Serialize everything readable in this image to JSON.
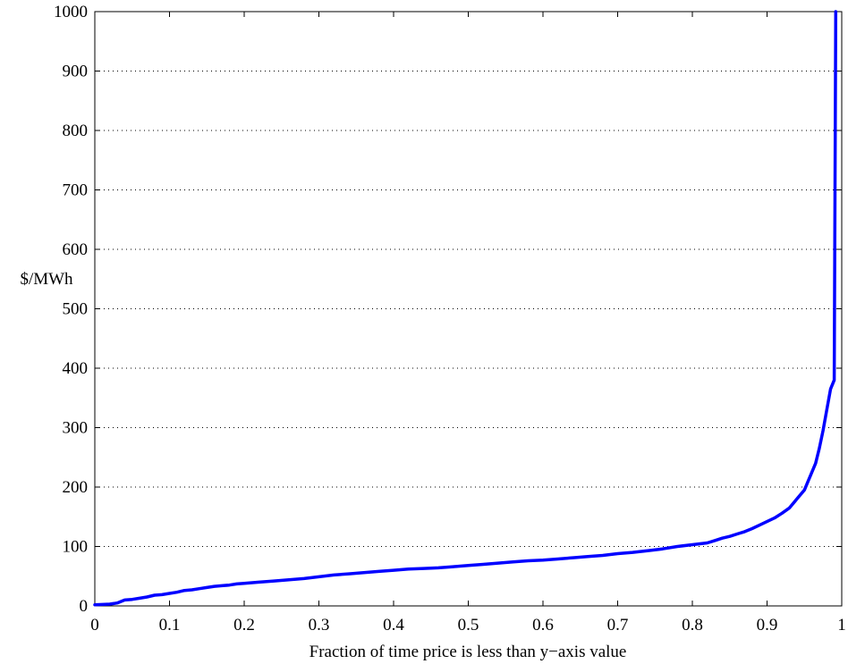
{
  "chart_data": {
    "type": "line",
    "title": "",
    "xlabel": "Fraction of time price is less than y−axis value",
    "ylabel": "$/MWh",
    "xlim": [
      0,
      1
    ],
    "ylim": [
      0,
      1000
    ],
    "x_ticks": [
      0,
      0.1,
      0.2,
      0.3,
      0.4,
      0.5,
      0.6,
      0.7,
      0.8,
      0.9,
      1
    ],
    "x_tick_labels": [
      "0",
      "0.1",
      "0.2",
      "0.3",
      "0.4",
      "0.5",
      "0.6",
      "0.7",
      "0.8",
      "0.9",
      "1"
    ],
    "y_ticks": [
      0,
      100,
      200,
      300,
      400,
      500,
      600,
      700,
      800,
      900,
      1000
    ],
    "y_tick_labels": [
      "0",
      "100",
      "200",
      "300",
      "400",
      "500",
      "600",
      "700",
      "800",
      "900",
      "1000"
    ],
    "grid": "horizontal dotted",
    "line_color": "#0000ff",
    "series": [
      {
        "x": [
          0,
          0.02,
          0.03,
          0.04,
          0.05,
          0.06,
          0.07,
          0.08,
          0.09,
          0.1,
          0.11,
          0.12,
          0.13,
          0.14,
          0.15,
          0.16,
          0.17,
          0.18,
          0.19,
          0.2,
          0.22,
          0.24,
          0.26,
          0.28,
          0.3,
          0.32,
          0.34,
          0.36,
          0.38,
          0.4,
          0.42,
          0.44,
          0.46,
          0.48,
          0.5,
          0.52,
          0.54,
          0.56,
          0.58,
          0.6,
          0.62,
          0.64,
          0.66,
          0.68,
          0.7,
          0.72,
          0.74,
          0.76,
          0.78,
          0.8,
          0.82,
          0.83,
          0.84,
          0.85,
          0.86,
          0.87,
          0.88,
          0.89,
          0.9,
          0.91,
          0.92,
          0.93,
          0.94,
          0.95,
          0.955,
          0.96,
          0.965,
          0.97,
          0.975,
          0.98,
          0.985,
          0.99,
          0.992
        ],
        "y": [
          2,
          3,
          5,
          10,
          11,
          13,
          15,
          18,
          19,
          21,
          23,
          26,
          27,
          29,
          31,
          33,
          34,
          35,
          37,
          38,
          40,
          42,
          44,
          46,
          49,
          52,
          54,
          56,
          58,
          60,
          62,
          63,
          64,
          66,
          68,
          70,
          72,
          74,
          76,
          77,
          79,
          81,
          83,
          85,
          88,
          90,
          93,
          96,
          100,
          103,
          106,
          110,
          114,
          117,
          121,
          125,
          130,
          136,
          142,
          148,
          156,
          165,
          180,
          195,
          210,
          225,
          240,
          265,
          295,
          330,
          365,
          380,
          1000
        ]
      }
    ]
  }
}
